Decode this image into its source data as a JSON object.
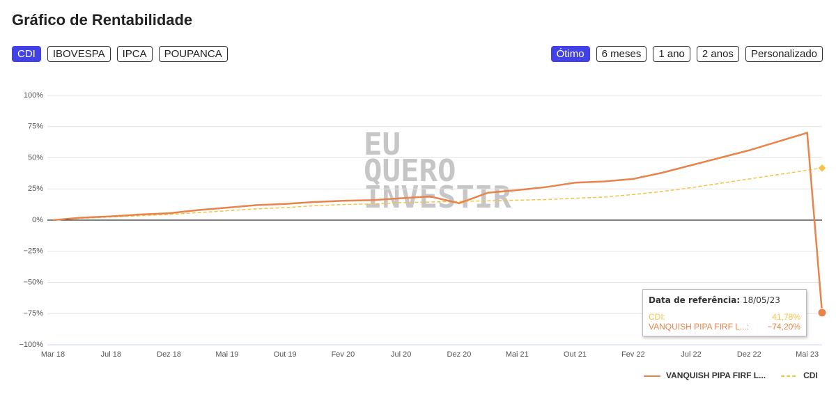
{
  "header": {
    "title": "Gráfico de Rentabilidade",
    "benchmarks": [
      "CDI",
      "IBOVESPA",
      "IPCA",
      "POUPANCA"
    ],
    "active_benchmark": 0,
    "periods": [
      "Ótimo",
      "6 meses",
      "1 ano",
      "2 anos",
      "Personalizado"
    ],
    "active_period": 0,
    "watermark": [
      "EU",
      "QUERO",
      "INVESTIR"
    ]
  },
  "tooltip": {
    "title": "Data de referência:",
    "date": "18/05/23",
    "rows": [
      {
        "name": "CDI:",
        "value": "41,78%",
        "color": "#f5c242"
      },
      {
        "name": "VANQUISH PIPA FIRF L...:",
        "value": "−74,20%",
        "color": "#e8834a"
      }
    ]
  },
  "chart_data": {
    "type": "line",
    "x": [
      "Mar 18",
      null,
      "Jul 18",
      null,
      "Dez 18",
      null,
      "Mai 19",
      null,
      "Out 19",
      null,
      "Fev 20",
      null,
      "Jul 20",
      null,
      "Dez 20",
      null,
      "Mai 21",
      null,
      "Out 21",
      null,
      "Fev 22",
      null,
      "Jul 22",
      null,
      "Dez 22",
      null,
      "Mai 23",
      null
    ],
    "series": [
      {
        "name": "VANQUISH PIPA FIRF L...",
        "color": "#e8834a",
        "dash": false,
        "values": [
          0,
          2,
          3,
          4.5,
          5.5,
          8,
          10,
          12,
          13,
          14.5,
          15.5,
          16,
          17.5,
          19,
          13.5,
          22,
          24,
          26.5,
          30,
          31,
          33,
          38,
          44,
          50,
          56,
          63,
          70,
          -74.2
        ]
      },
      {
        "name": "CDI",
        "color": "#f5c242",
        "dash": true,
        "values": [
          0,
          1.5,
          2.5,
          3.5,
          4.5,
          6,
          7.5,
          9,
          10,
          11.5,
          12.5,
          13,
          14,
          14.5,
          15,
          15.5,
          16,
          16.5,
          17.5,
          18.5,
          20.5,
          23,
          26,
          29.5,
          33,
          36.5,
          40,
          41.78
        ]
      }
    ],
    "ylim": [
      -100,
      100
    ],
    "yticks": [
      {
        "value": -100,
        "label": "−100%"
      },
      {
        "value": -75,
        "label": "−75%"
      },
      {
        "value": -50,
        "label": "−50%"
      },
      {
        "value": -25,
        "label": "−25%"
      },
      {
        "value": 0,
        "label": "0%"
      },
      {
        "value": 25,
        "label": "25%"
      },
      {
        "value": 50,
        "label": "50%"
      },
      {
        "value": 75,
        "label": "75%"
      },
      {
        "value": 100,
        "label": "100%"
      }
    ],
    "grid": true
  }
}
